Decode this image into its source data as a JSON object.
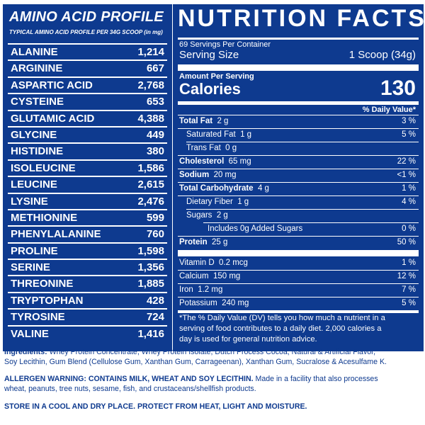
{
  "amino": {
    "title": "AMINO ACID PROFILE",
    "subtitle": "TYPICAL AMINO ACID PROFILE PER 34G SCOOP (in mg)",
    "rows": [
      {
        "name": "ALANINE",
        "value": "1,214"
      },
      {
        "name": "ARGININE",
        "value": "667"
      },
      {
        "name": "ASPARTIC ACID",
        "value": "2,768"
      },
      {
        "name": "CYSTEINE",
        "value": "653"
      },
      {
        "name": "GLUTAMIC ACID",
        "value": "4,388"
      },
      {
        "name": "GLYCINE",
        "value": "449"
      },
      {
        "name": "HISTIDINE",
        "value": "380"
      },
      {
        "name": "ISOLEUCINE",
        "value": "1,586"
      },
      {
        "name": "LEUCINE",
        "value": "2,615"
      },
      {
        "name": "LYSINE",
        "value": "2,476"
      },
      {
        "name": "METHIONINE",
        "value": "599"
      },
      {
        "name": "PHENYLALANINE",
        "value": "760"
      },
      {
        "name": "PROLINE",
        "value": "1,598"
      },
      {
        "name": "SERINE",
        "value": "1,356"
      },
      {
        "name": "THREONINE",
        "value": "1,885"
      },
      {
        "name": "TRYPTOPHAN",
        "value": "428"
      },
      {
        "name": "TYROSINE",
        "value": "724"
      },
      {
        "name": "VALINE",
        "value": "1,416"
      }
    ]
  },
  "nutrition": {
    "title": "NUTRITION FACTS",
    "servings_per_container": "69 Servings Per Container",
    "serving_size_label": "Serving Size",
    "serving_size_value": "1 Scoop (34g)",
    "amount_per_serving": "Amount Per Serving",
    "calories_label": "Calories",
    "calories_value": "130",
    "dv_header": "% Daily Value*",
    "total_fat": {
      "label": "Total Fat",
      "amount": "2 g",
      "dv": "3 %"
    },
    "sat_fat": {
      "label": "Saturated Fat",
      "amount": "1 g",
      "dv": "5 %"
    },
    "trans_fat": {
      "label": "Trans Fat",
      "amount": "0 g"
    },
    "cholesterol": {
      "label": "Cholesterol",
      "amount": "65 mg",
      "dv": "22 %"
    },
    "sodium": {
      "label": "Sodium",
      "amount": "20 mg",
      "dv": "<1 %"
    },
    "carbs": {
      "label": "Total Carbohydrate",
      "amount": "4 g",
      "dv": "1 %"
    },
    "fiber": {
      "label": "Dietary Fiber",
      "amount": "1 g",
      "dv": "4 %"
    },
    "sugars": {
      "label": "Sugars",
      "amount": "2 g"
    },
    "added_sugars": {
      "label": "Includes 0g Added Sugars",
      "dv": "0 %"
    },
    "protein": {
      "label": "Protein",
      "amount": "25 g",
      "dv": "50 %"
    },
    "vitamin_d": {
      "label": "Vitamin D",
      "amount": "0.2 mcg",
      "dv": "1 %"
    },
    "calcium": {
      "label": "Calcium",
      "amount": "150 mg",
      "dv": "12 %"
    },
    "iron": {
      "label": "Iron",
      "amount": "1.2 mg",
      "dv": "7 %"
    },
    "potassium": {
      "label": "Potassium",
      "amount": "240 mg",
      "dv": "5 %"
    },
    "footnote_1": "*The % Daily Value (DV) tells you how much a nutrient in a",
    "footnote_2": "serving of food contributes to a daily diet. 2,000 calories a",
    "footnote_3": "day is used for general nutrition advice."
  },
  "ingredients": {
    "label": "Ingredients:",
    "line1": "Whey Protein Concentrate, Whey Protein Isolate, Dutch Process Cocoa, Natural & Artificial Flavor,",
    "line2": "Soy Lecithin, Gum Blend (Cellulose Gum, Xanthan Gum, Carrageenan), Xanthan Gum, Sucralose & Acesulfame K."
  },
  "allergen": {
    "label": "ALLERGEN WARNING: CONTAINS MILK, WHEAT AND SOY LECITHIN.",
    "text1": "Made in a facility that also processes",
    "text2": "wheat, peanuts, tree nuts, sesame, fish, and crustaceans/shellfish products."
  },
  "storage": "STORE IN A COOL AND DRY PLACE. PROTECT FROM HEAT, LIGHT AND MOISTURE."
}
